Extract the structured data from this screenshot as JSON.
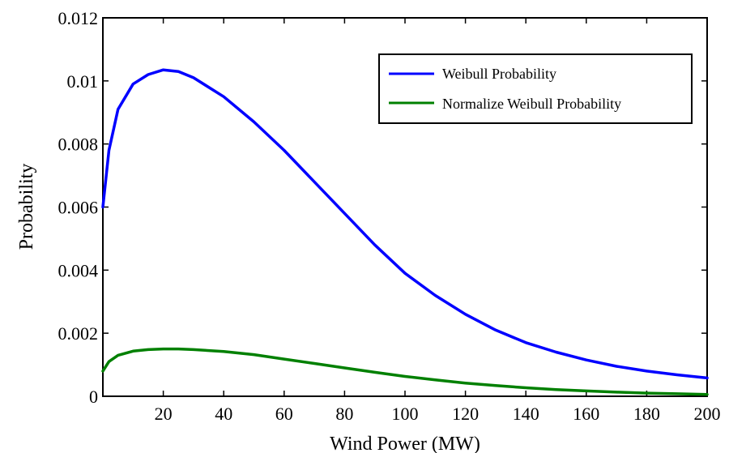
{
  "chart_data": {
    "type": "line",
    "xlabel": "Wind Power (MW)",
    "ylabel": "Probability",
    "xlim": [
      0,
      200
    ],
    "ylim": [
      0,
      0.012
    ],
    "xticks": [
      20,
      40,
      60,
      80,
      100,
      120,
      140,
      160,
      180,
      200
    ],
    "xtick_labels": [
      "20",
      "40",
      "60",
      "80",
      "100",
      "120",
      "140",
      "160",
      "180",
      "200"
    ],
    "yticks": [
      0,
      0.002,
      0.004,
      0.006,
      0.008,
      0.01,
      0.012
    ],
    "ytick_labels": [
      "0",
      "0.002",
      "0.004",
      "0.006",
      "0.008",
      "0.01",
      "0.012"
    ],
    "grid": false,
    "legend_position": "top-right",
    "x": [
      0,
      2,
      5,
      10,
      15,
      20,
      25,
      30,
      40,
      50,
      60,
      70,
      80,
      90,
      100,
      110,
      120,
      130,
      140,
      150,
      160,
      170,
      180,
      190,
      200
    ],
    "series": [
      {
        "name": "Weibull Probability",
        "color": "#0000ff",
        "values": [
          0.006,
          0.0078,
          0.0091,
          0.0099,
          0.0102,
          0.01035,
          0.0103,
          0.0101,
          0.0095,
          0.0087,
          0.0078,
          0.0068,
          0.0058,
          0.0048,
          0.0039,
          0.0032,
          0.0026,
          0.0021,
          0.0017,
          0.0014,
          0.00115,
          0.00095,
          0.0008,
          0.00068,
          0.00058
        ]
      },
      {
        "name": "Normalize Weibull Probability",
        "color": "#008000",
        "values": [
          0.0008,
          0.0011,
          0.0013,
          0.00143,
          0.00148,
          0.0015,
          0.0015,
          0.00148,
          0.00142,
          0.00132,
          0.00118,
          0.00104,
          0.0009,
          0.00076,
          0.00063,
          0.00052,
          0.00042,
          0.00034,
          0.00027,
          0.00021,
          0.00017,
          0.00013,
          0.0001,
          8e-05,
          6e-05
        ]
      }
    ]
  }
}
